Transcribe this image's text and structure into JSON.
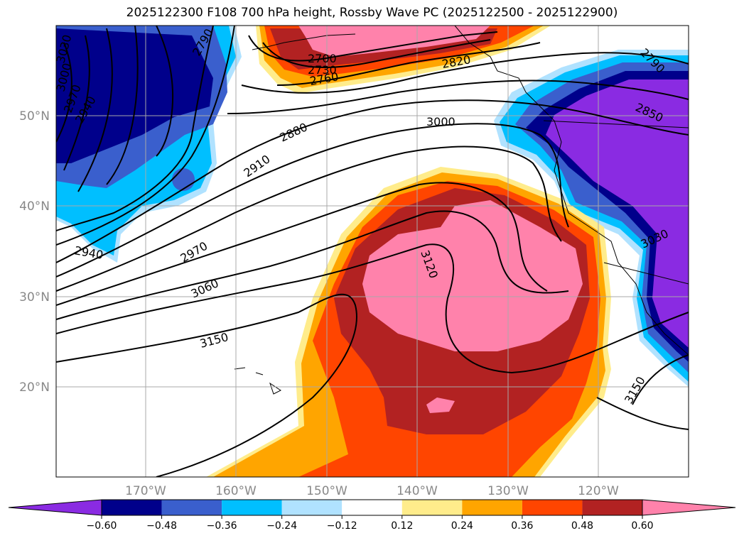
{
  "title": "2025122300 F108 700 hPa height, Rossby Wave PC (2025122500 - 2025122900)",
  "map": {
    "lon_labels": [
      "170°W",
      "160°W",
      "150°W",
      "140°W",
      "130°W",
      "120°W"
    ],
    "lat_labels": [
      "50°N",
      "40°N",
      "30°N",
      "20°N"
    ],
    "contour_labels": [
      "3030",
      "3000",
      "2970",
      "2940",
      "2790",
      "2700",
      "2730",
      "2760",
      "2820",
      "2790",
      "2850",
      "2880",
      "2910",
      "3000",
      "2940",
      "2970",
      "3060",
      "3120",
      "3150",
      "3150",
      "3030"
    ]
  },
  "colorbar": {
    "ticks": [
      "−0.60",
      "−0.48",
      "−0.36",
      "−0.24",
      "−0.12",
      "0.12",
      "0.24",
      "0.36",
      "0.48",
      "0.60"
    ],
    "colors": [
      "#8a2be2",
      "#00008b",
      "#3a5fcd",
      "#00bfff",
      "#b0e2ff",
      "#ffffff",
      "#ffec8b",
      "#ffa500",
      "#ff4500",
      "#b22222",
      "#ff82ab"
    ]
  }
}
